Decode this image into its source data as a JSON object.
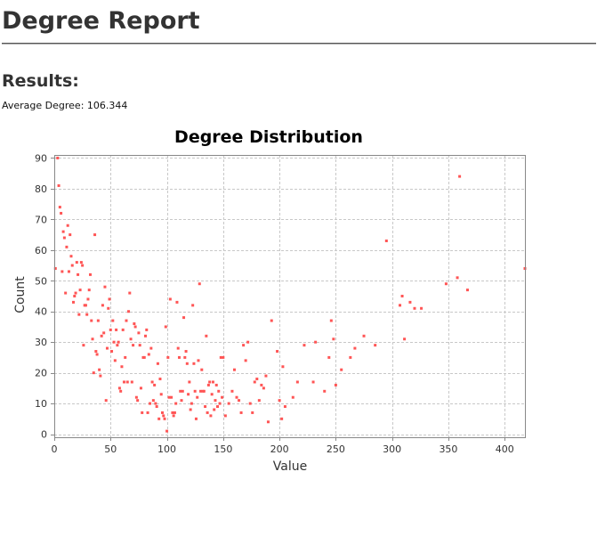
{
  "report": {
    "title": "Degree Report",
    "results_heading": "Results:",
    "average_label": "Average Degree:",
    "average_value": "106.344"
  },
  "colors": {
    "point": "#ff5555",
    "grid": "#c8c8c8",
    "frame": "#888888",
    "text": "#333333"
  },
  "chart_data": {
    "type": "scatter",
    "title": "Degree Distribution",
    "xlabel": "Value",
    "ylabel": "Count",
    "xlim": [
      0,
      418
    ],
    "ylim": [
      -1,
      91
    ],
    "xticks": [
      0,
      50,
      100,
      150,
      200,
      250,
      300,
      350,
      400
    ],
    "yticks": [
      0,
      10,
      20,
      30,
      40,
      50,
      60,
      70,
      80,
      90
    ],
    "grid": true,
    "legend": "none",
    "series": [
      {
        "points": [
          [
            1,
            54
          ],
          [
            3,
            90
          ],
          [
            4,
            81
          ],
          [
            5,
            74
          ],
          [
            6,
            72
          ],
          [
            7,
            53
          ],
          [
            8,
            66
          ],
          [
            9,
            64
          ],
          [
            10,
            46
          ],
          [
            11,
            61
          ],
          [
            12,
            68
          ],
          [
            13,
            53
          ],
          [
            14,
            65
          ],
          [
            15,
            58
          ],
          [
            16,
            55
          ],
          [
            17,
            43
          ],
          [
            18,
            45
          ],
          [
            19,
            46
          ],
          [
            20,
            56
          ],
          [
            21,
            52
          ],
          [
            22,
            39
          ],
          [
            23,
            47
          ],
          [
            24,
            56
          ],
          [
            25,
            55
          ],
          [
            26,
            29
          ],
          [
            27,
            42
          ],
          [
            28,
            42
          ],
          [
            29,
            39
          ],
          [
            30,
            44
          ],
          [
            31,
            47
          ],
          [
            32,
            52
          ],
          [
            33,
            37
          ],
          [
            34,
            31
          ],
          [
            35,
            20
          ],
          [
            36,
            65
          ],
          [
            37,
            27
          ],
          [
            38,
            26
          ],
          [
            39,
            37
          ],
          [
            40,
            21
          ],
          [
            41,
            19
          ],
          [
            42,
            32
          ],
          [
            43,
            42
          ],
          [
            44,
            33
          ],
          [
            45,
            48
          ],
          [
            46,
            11
          ],
          [
            47,
            28
          ],
          [
            48,
            41
          ],
          [
            49,
            44
          ],
          [
            50,
            34
          ],
          [
            51,
            27
          ],
          [
            52,
            37
          ],
          [
            53,
            30
          ],
          [
            54,
            24
          ],
          [
            55,
            34
          ],
          [
            56,
            29
          ],
          [
            57,
            30
          ],
          [
            58,
            15
          ],
          [
            59,
            14
          ],
          [
            60,
            22
          ],
          [
            61,
            34
          ],
          [
            62,
            17
          ],
          [
            63,
            25
          ],
          [
            64,
            37
          ],
          [
            65,
            17
          ],
          [
            66,
            40
          ],
          [
            67,
            46
          ],
          [
            68,
            31
          ],
          [
            69,
            17
          ],
          [
            70,
            29
          ],
          [
            71,
            36
          ],
          [
            72,
            35
          ],
          [
            73,
            12
          ],
          [
            74,
            11
          ],
          [
            75,
            33
          ],
          [
            76,
            29
          ],
          [
            77,
            15
          ],
          [
            78,
            7
          ],
          [
            79,
            25
          ],
          [
            80,
            25
          ],
          [
            81,
            32
          ],
          [
            82,
            34
          ],
          [
            83,
            7
          ],
          [
            84,
            26
          ],
          [
            85,
            10
          ],
          [
            86,
            28
          ],
          [
            87,
            17
          ],
          [
            88,
            11
          ],
          [
            89,
            16
          ],
          [
            90,
            10
          ],
          [
            91,
            9
          ],
          [
            92,
            23
          ],
          [
            93,
            5
          ],
          [
            94,
            18
          ],
          [
            95,
            13
          ],
          [
            96,
            7
          ],
          [
            97,
            6
          ],
          [
            98,
            5
          ],
          [
            99,
            35
          ],
          [
            100,
            1
          ],
          [
            101,
            25
          ],
          [
            102,
            12
          ],
          [
            103,
            44
          ],
          [
            104,
            12
          ],
          [
            105,
            7
          ],
          [
            106,
            6
          ],
          [
            107,
            7
          ],
          [
            108,
            10
          ],
          [
            109,
            43
          ],
          [
            110,
            28
          ],
          [
            111,
            25
          ],
          [
            112,
            14
          ],
          [
            113,
            11
          ],
          [
            114,
            14
          ],
          [
            115,
            38
          ],
          [
            116,
            25
          ],
          [
            117,
            27
          ],
          [
            118,
            23
          ],
          [
            119,
            13
          ],
          [
            120,
            17
          ],
          [
            121,
            8
          ],
          [
            122,
            10
          ],
          [
            123,
            42
          ],
          [
            124,
            23
          ],
          [
            125,
            14
          ],
          [
            126,
            5
          ],
          [
            127,
            12
          ],
          [
            128,
            24
          ],
          [
            129,
            49
          ],
          [
            130,
            14
          ],
          [
            131,
            21
          ],
          [
            132,
            14
          ],
          [
            133,
            14
          ],
          [
            134,
            9
          ],
          [
            135,
            32
          ],
          [
            136,
            7
          ],
          [
            137,
            16
          ],
          [
            138,
            17
          ],
          [
            139,
            6
          ],
          [
            140,
            13
          ],
          [
            141,
            17
          ],
          [
            142,
            8
          ],
          [
            143,
            11
          ],
          [
            144,
            16
          ],
          [
            145,
            9
          ],
          [
            146,
            14
          ],
          [
            147,
            10
          ],
          [
            148,
            25
          ],
          [
            149,
            12
          ],
          [
            150,
            25
          ],
          [
            152,
            6
          ],
          [
            155,
            10
          ],
          [
            158,
            14
          ],
          [
            160,
            21
          ],
          [
            162,
            12
          ],
          [
            164,
            11
          ],
          [
            166,
            7
          ],
          [
            168,
            29
          ],
          [
            170,
            24
          ],
          [
            172,
            30
          ],
          [
            174,
            10
          ],
          [
            176,
            7
          ],
          [
            178,
            17
          ],
          [
            180,
            18
          ],
          [
            182,
            11
          ],
          [
            184,
            16
          ],
          [
            186,
            15
          ],
          [
            188,
            19
          ],
          [
            190,
            4
          ],
          [
            193,
            37
          ],
          [
            198,
            27
          ],
          [
            200,
            11
          ],
          [
            202,
            5
          ],
          [
            203,
            22
          ],
          [
            205,
            9
          ],
          [
            212,
            12
          ],
          [
            216,
            17
          ],
          [
            222,
            29
          ],
          [
            230,
            17
          ],
          [
            232,
            30
          ],
          [
            240,
            14
          ],
          [
            244,
            25
          ],
          [
            246,
            37
          ],
          [
            248,
            31
          ],
          [
            250,
            16
          ],
          [
            255,
            21
          ],
          [
            263,
            25
          ],
          [
            267,
            28
          ],
          [
            275,
            32
          ],
          [
            285,
            29
          ],
          [
            295,
            63
          ],
          [
            307,
            42
          ],
          [
            309,
            45
          ],
          [
            311,
            31
          ],
          [
            316,
            43
          ],
          [
            320,
            41
          ],
          [
            326,
            41
          ],
          [
            348,
            49
          ],
          [
            358,
            51
          ],
          [
            360,
            84
          ],
          [
            367,
            47
          ],
          [
            418,
            54
          ]
        ]
      }
    ]
  }
}
